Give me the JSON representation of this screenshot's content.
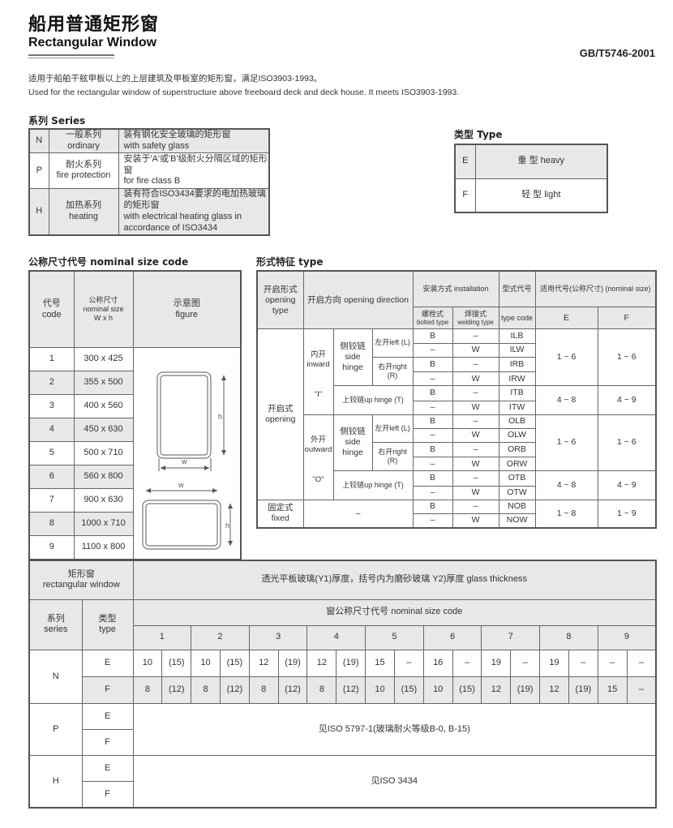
{
  "header": {
    "title_cn": "船用普通矩形窗",
    "title_en": "Rectangular Window",
    "standard": "GB/T5746-2001",
    "desc_cn": "适用于船舶干舷甲板以上的上层建筑及甲板室的矩形窗，满足ISO3903-1993。",
    "desc_en": "Used for the rectangular window of superstructure above freeboard deck and deck house. It meets ISO3903-1993."
  },
  "series": {
    "label": "系列  Series",
    "rows": [
      {
        "code": "N",
        "name_cn": "一般系列",
        "name_en": "ordinary",
        "desc_cn": "装有钢化安全玻璃的矩形窗",
        "desc_en": "with safety glass"
      },
      {
        "code": "P",
        "name_cn": "耐火系列",
        "name_en": "fire protection",
        "desc_cn": "安装于'A'或'B'级耐火分隔区域的矩形窗",
        "desc_en": "for fire class B"
      },
      {
        "code": "H",
        "name_cn": "加热系列",
        "name_en": "heating",
        "desc_cn": "装有符合ISO3434要求的电加热玻璃的矩形窗",
        "desc_en": "with electrical heating glass in accordance of ISO3434"
      }
    ]
  },
  "type": {
    "label": "类型  Type",
    "rows": [
      {
        "code": "E",
        "name": "重  型  heavy"
      },
      {
        "code": "F",
        "name": "轻  型  light"
      }
    ]
  },
  "sizes": {
    "label": "公称尺寸代号 nominal size code",
    "h_code_cn": "代号",
    "h_code_en": "code",
    "h_size_cn": "公称尺寸",
    "h_size_en": "nominal size",
    "h_size_unit": "W x h",
    "h_fig_cn": "示意图",
    "h_fig_en": "figure",
    "fig_w": "w",
    "fig_h": "h",
    "rows": [
      {
        "code": "1",
        "size": "300 x 425"
      },
      {
        "code": "2",
        "size": "355 x 500"
      },
      {
        "code": "3",
        "size": "400 x 560"
      },
      {
        "code": "4",
        "size": "450 x 630"
      },
      {
        "code": "5",
        "size": "500 x 710"
      },
      {
        "code": "6",
        "size": "560 x 800"
      },
      {
        "code": "7",
        "size": "900 x 630"
      },
      {
        "code": "8",
        "size": "1000 x 710"
      },
      {
        "code": "9",
        "size": "1100 x 800"
      }
    ]
  },
  "forms": {
    "label": "形式特征  type",
    "h": {
      "open_type": "开启形式 opening type",
      "direction": "开启方向 opening direction",
      "install": "安装方式  installation",
      "bolted": "螺栓式",
      "bolted_en": "bolted type",
      "welding": "焊接式",
      "welding_en": "welding type",
      "typecode": "型式代号",
      "typecode_en": "type code",
      "nominal": "适用代号(公称尺寸) (nominal size)",
      "e": "E",
      "f": "F"
    },
    "opening": "开启式 opening",
    "inward": "内开 inward",
    "inward_q": "\"I\"",
    "outward": "外开 outward",
    "outward_q": "\"O\"",
    "side_hinge": "侧铰链 side hinge",
    "left": "左开left (L)",
    "right": "右开right (R)",
    "up_hinge": "上铰链up hinge (T)",
    "fixed": "固定式 fixed",
    "dash": "–",
    "rows": [
      [
        "B",
        "–",
        "ILB"
      ],
      [
        "–",
        "W",
        "ILW"
      ],
      [
        "B",
        "–",
        "IRB"
      ],
      [
        "–",
        "W",
        "IRW"
      ],
      [
        "B",
        "–",
        "ITB"
      ],
      [
        "–",
        "W",
        "ITW"
      ],
      [
        "B",
        "–",
        "OLB"
      ],
      [
        "–",
        "W",
        "OLW"
      ],
      [
        "B",
        "–",
        "ORB"
      ],
      [
        "–",
        "W",
        "ORW"
      ],
      [
        "B",
        "–",
        "OTB"
      ],
      [
        "–",
        "W",
        "OTW"
      ],
      [
        "B",
        "–",
        "NOB"
      ],
      [
        "–",
        "W",
        "NOW"
      ]
    ],
    "ranges": [
      [
        "1 ~ 6",
        "1 ~ 6"
      ],
      [
        "4 ~ 8",
        "4 ~ 9"
      ],
      [
        "1 ~ 6",
        "1 ~ 6"
      ],
      [
        "4 ~ 8",
        "4 ~ 9"
      ],
      [
        "1 ~ 8",
        "1 ~ 9"
      ]
    ]
  },
  "glass": {
    "h_window_cn": "矩形窗",
    "h_window_en": "rectangular window",
    "h_thickness": "透光平板玻璃(Y1)厚度，括号内为磨砂玻璃  Y2)厚度  glass thickness",
    "h_series_cn": "系列",
    "h_series_en": "series",
    "h_type_cn": "类型",
    "h_type_en": "type",
    "h_sizecode": "窗公称尺寸代号 nominal size code",
    "codes": [
      "1",
      "2",
      "3",
      "4",
      "5",
      "6",
      "7",
      "8",
      "9"
    ],
    "N": {
      "series": "N",
      "E": [
        "10",
        "(15)",
        "10",
        "(15)",
        "12",
        "(19)",
        "12",
        "(19)",
        "15",
        "–",
        "16",
        "–",
        "19",
        "–",
        "19",
        "–",
        "–",
        "–"
      ],
      "F": [
        "8",
        "(12)",
        "8",
        "(12)",
        "8",
        "(12)",
        "8",
        "(12)",
        "10",
        "(15)",
        "10",
        "(15)",
        "12",
        "(19)",
        "12",
        "(19)",
        "15",
        "–"
      ]
    },
    "P": {
      "series": "P",
      "note": "见ISO 5797-1(玻璃耐火等级B-0, B-15)"
    },
    "H": {
      "series": "H",
      "note": "见ISO 3434"
    },
    "type_e": "E",
    "type_f": "F"
  }
}
